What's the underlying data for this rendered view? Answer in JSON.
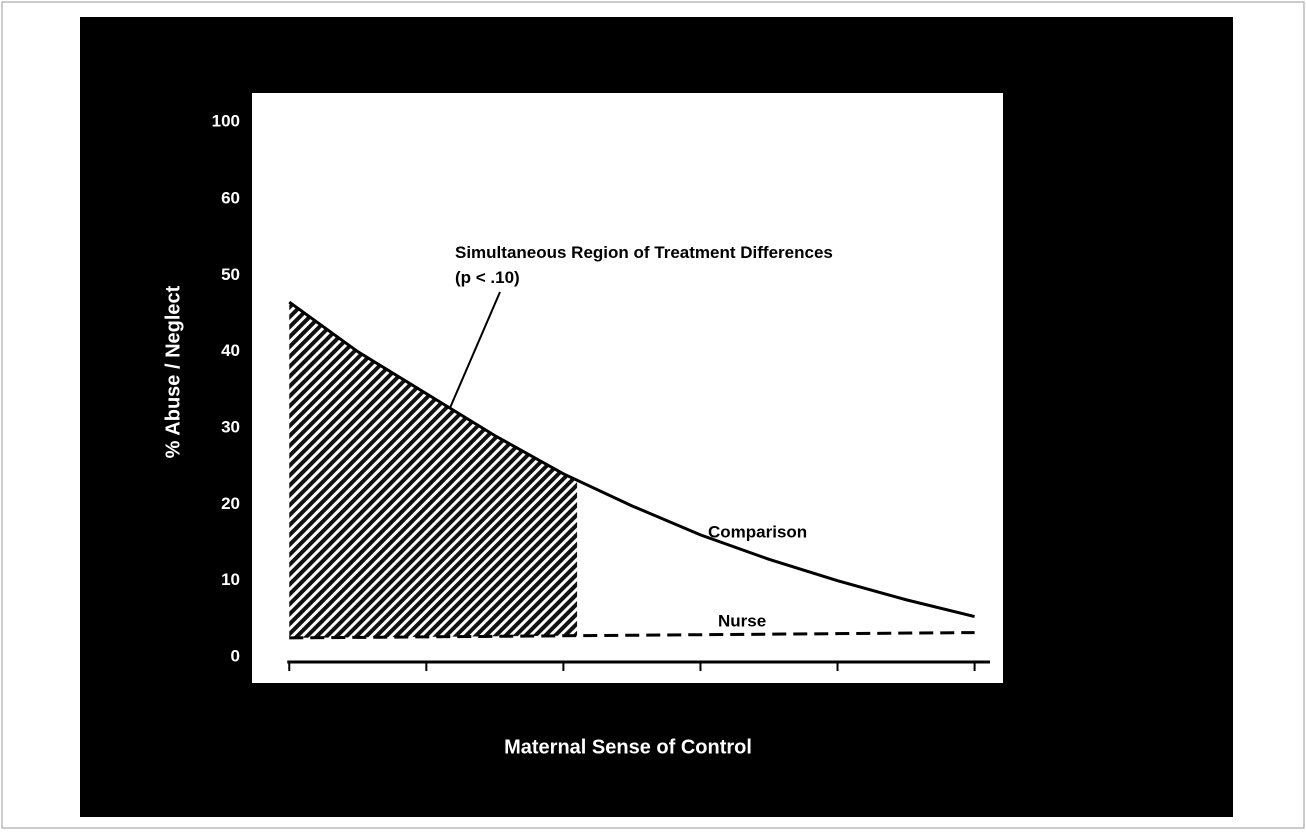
{
  "chart_data": {
    "type": "line",
    "xlabel": "Maternal Sense of Control",
    "ylabel": "% Abuse / Neglect",
    "xlim": [
      8.75,
      14.2
    ],
    "xticks": [
      9,
      10,
      11,
      12,
      13,
      14
    ],
    "ylim": [
      0,
      100
    ],
    "yticks": [
      0,
      10,
      20,
      30,
      40,
      50,
      60,
      100
    ],
    "ybreak": [
      60,
      100
    ],
    "series": [
      {
        "name": "Comparison",
        "color": "#000000",
        "style": "solid",
        "x": [
          9,
          9.5,
          10,
          10.5,
          11,
          11.5,
          12,
          12.5,
          13,
          13.5,
          14
        ],
        "values": [
          46.5,
          40,
          34.5,
          29,
          24,
          19.8,
          16,
          12.8,
          10,
          7.5,
          5.3
        ]
      },
      {
        "name": "Nurse",
        "color": "#000000",
        "style": "dashed",
        "x": [
          9,
          14
        ],
        "values": [
          2.5,
          3.2
        ]
      }
    ],
    "region": {
      "x": [
        9,
        11.1
      ],
      "label": "Simultaneous Region of Treatment Differences (p < .10)"
    }
  }
}
